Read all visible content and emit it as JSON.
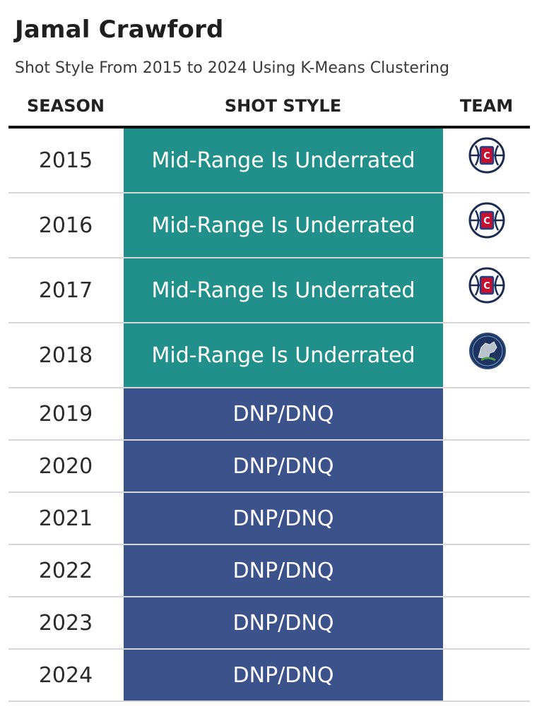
{
  "title": "Jamal Crawford",
  "subtitle": "Shot Style From 2015 to 2024 Using K-Means Clustering",
  "headers": {
    "season": "SEASON",
    "shot_style": "SHOT STYLE",
    "team": "TEAM"
  },
  "colors": {
    "mid_range": "#22908a",
    "dnp": "#3b528b"
  },
  "chart_data": {
    "type": "table",
    "columns": [
      "SEASON",
      "SHOT STYLE",
      "TEAM"
    ],
    "rows": [
      {
        "season": "2015",
        "shot_style": "Mid-Range Is Underrated",
        "team_icon": "clippers-logo-icon"
      },
      {
        "season": "2016",
        "shot_style": "Mid-Range Is Underrated",
        "team_icon": "clippers-logo-icon"
      },
      {
        "season": "2017",
        "shot_style": "Mid-Range Is Underrated",
        "team_icon": "clippers-logo-icon"
      },
      {
        "season": "2018",
        "shot_style": "Mid-Range Is Underrated",
        "team_icon": "timberwolves-logo-icon"
      },
      {
        "season": "2019",
        "shot_style": "DNP/DNQ",
        "team_icon": ""
      },
      {
        "season": "2020",
        "shot_style": "DNP/DNQ",
        "team_icon": ""
      },
      {
        "season": "2021",
        "shot_style": "DNP/DNQ",
        "team_icon": ""
      },
      {
        "season": "2022",
        "shot_style": "DNP/DNQ",
        "team_icon": ""
      },
      {
        "season": "2023",
        "shot_style": "DNP/DNQ",
        "team_icon": ""
      },
      {
        "season": "2024",
        "shot_style": "DNP/DNQ",
        "team_icon": ""
      }
    ]
  }
}
